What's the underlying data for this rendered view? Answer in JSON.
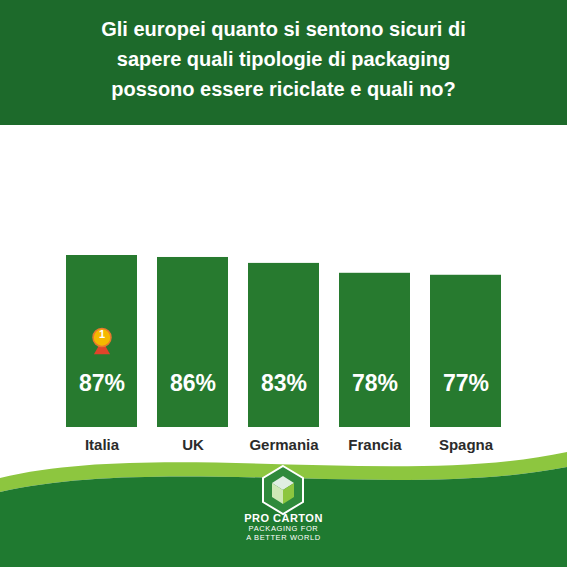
{
  "chart_data": {
    "type": "bar",
    "title": "Gli europei quanto si sentono sicuri di\nsapere quali tipologie di packaging\npossono essere riciclate e quali no?",
    "categories": [
      "Italia",
      "UK",
      "Germania",
      "Francia",
      "Spagna"
    ],
    "values": [
      87,
      86,
      83,
      78,
      77
    ],
    "value_labels": [
      "87%",
      "86%",
      "83%",
      "78%",
      "77%"
    ],
    "data_labels": true,
    "color": "#277a2f",
    "ylim": [
      0,
      87
    ],
    "yticks": [],
    "tick_labels": "x",
    "annotations": [
      {
        "category": "Italia",
        "text": "1"
      }
    ],
    "logo": {
      "name": "PRO CARTON",
      "tagline": [
        "PACKAGING FOR",
        "A BETTER WORLD"
      ]
    }
  }
}
